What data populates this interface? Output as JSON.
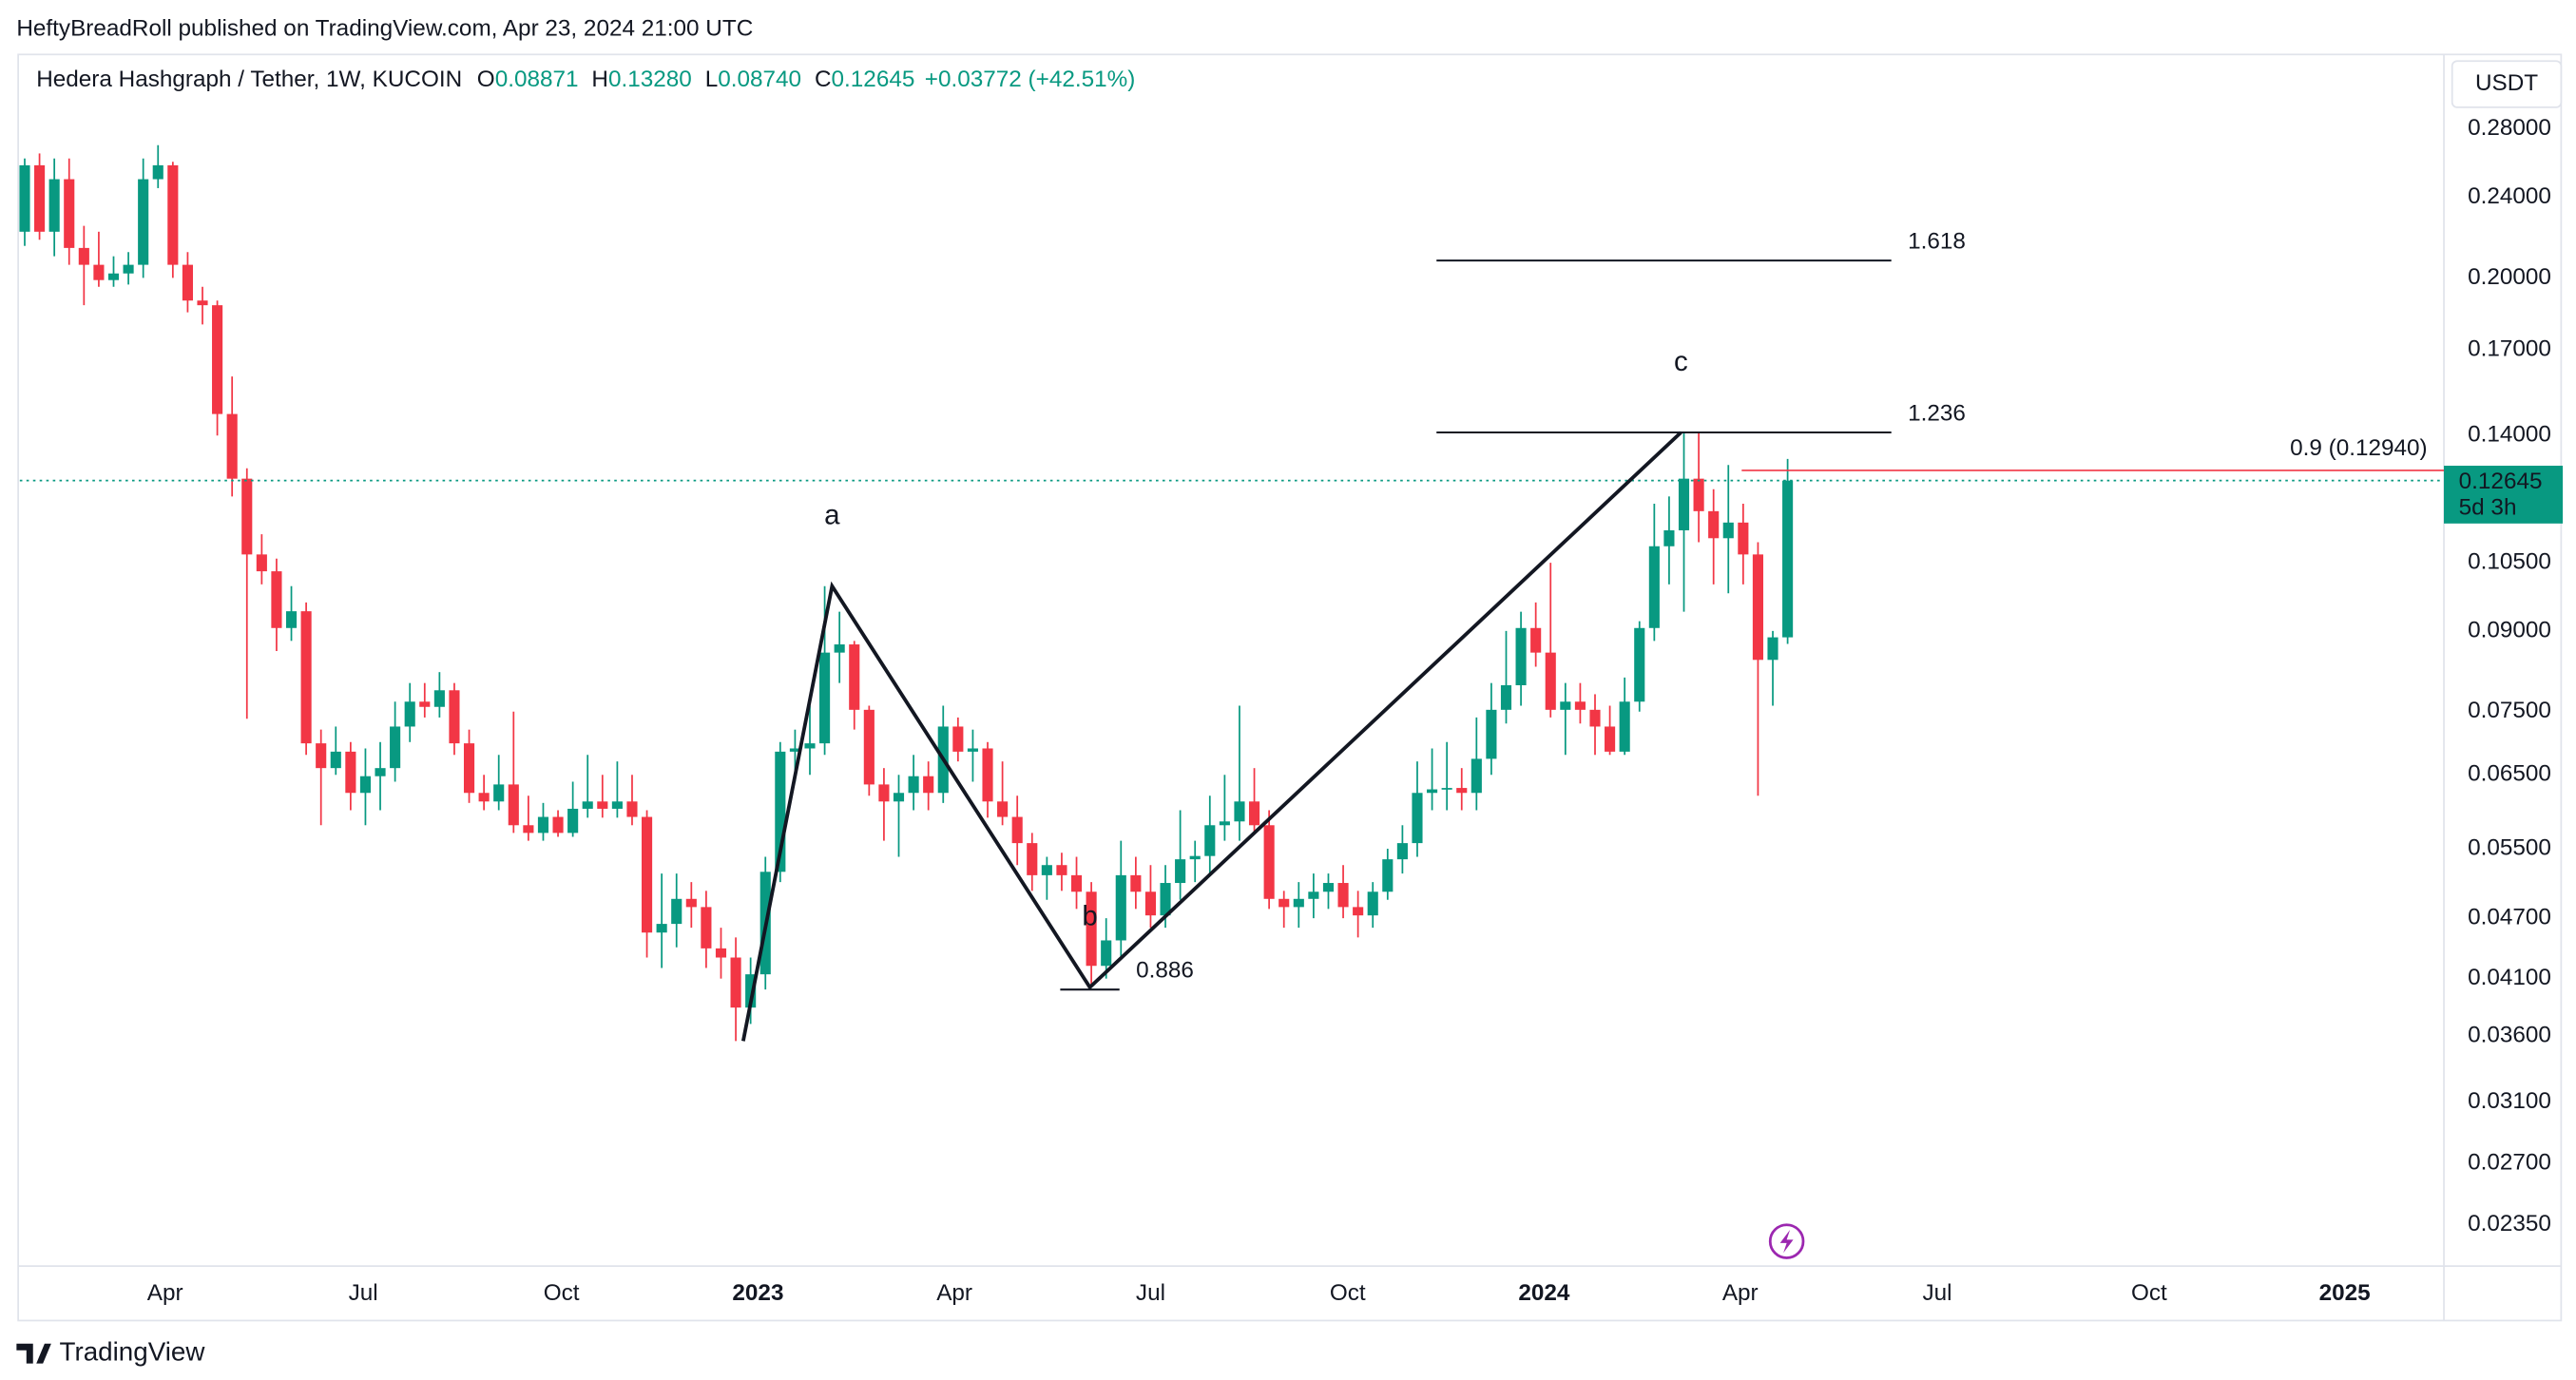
{
  "header": {
    "published": "HeftyBreadRoll published on TradingView.com, Apr 23, 2024 21:00 UTC",
    "brand": "TradingView"
  },
  "chart_data": {
    "type": "candlestick",
    "title": "Hedera Hashgraph / Tether, 1W, KUCOIN",
    "quote": [
      {
        "label": "O",
        "value": "0.08871"
      },
      {
        "label": "H",
        "value": "0.13280"
      },
      {
        "label": "L",
        "value": "0.08740"
      },
      {
        "label": "C",
        "value": "0.12645"
      }
    ],
    "change": "+0.03772 (+42.51%)",
    "currency": "USDT",
    "log_scale": true,
    "grid": false,
    "colors": {
      "up": "#089981",
      "down": "#f23645"
    },
    "xlim": [
      -0.33,
      163.3
    ],
    "xticks": [
      {
        "value": 9.48,
        "label": "Apr"
      },
      {
        "value": 22.85,
        "label": "Jul"
      },
      {
        "value": 36.23,
        "label": "Oct"
      },
      {
        "value": 49.5,
        "label": "2023"
      },
      {
        "value": 62.76,
        "label": "Apr"
      },
      {
        "value": 76.0,
        "label": "Jul"
      },
      {
        "value": 89.3,
        "label": "Oct"
      },
      {
        "value": 102.56,
        "label": "2024"
      },
      {
        "value": 115.8,
        "label": "Apr"
      },
      {
        "value": 129.1,
        "label": "Jul"
      },
      {
        "value": 143.4,
        "label": "Oct"
      },
      {
        "value": 156.6,
        "label": "2025"
      }
    ],
    "ylim": [
      0.0214,
      0.329
    ],
    "yticks": [
      {
        "value": 0.28,
        "label": "0.28000"
      },
      {
        "value": 0.24,
        "label": "0.24000"
      },
      {
        "value": 0.2,
        "label": "0.20000"
      },
      {
        "value": 0.17,
        "label": "0.17000"
      },
      {
        "value": 0.14,
        "label": "0.14000"
      },
      {
        "value": 0.105,
        "label": "0.10500"
      },
      {
        "value": 0.09,
        "label": "0.09000"
      },
      {
        "value": 0.075,
        "label": "0.07500"
      },
      {
        "value": 0.065,
        "label": "0.06500"
      },
      {
        "value": 0.055,
        "label": "0.05500"
      },
      {
        "value": 0.047,
        "label": "0.04700"
      },
      {
        "value": 0.041,
        "label": "0.04100"
      },
      {
        "value": 0.036,
        "label": "0.03600"
      },
      {
        "value": 0.031,
        "label": "0.03100"
      },
      {
        "value": 0.027,
        "label": "0.02700"
      },
      {
        "value": 0.0235,
        "label": "0.02350"
      }
    ],
    "ohlc": [
      [
        0.222,
        0.262,
        0.215,
        0.258
      ],
      [
        0.258,
        0.265,
        0.218,
        0.222
      ],
      [
        0.222,
        0.262,
        0.21,
        0.25
      ],
      [
        0.25,
        0.262,
        0.206,
        0.214
      ],
      [
        0.214,
        0.225,
        0.188,
        0.206
      ],
      [
        0.206,
        0.222,
        0.196,
        0.199
      ],
      [
        0.199,
        0.21,
        0.196,
        0.202
      ],
      [
        0.202,
        0.212,
        0.197,
        0.206
      ],
      [
        0.206,
        0.262,
        0.2,
        0.25
      ],
      [
        0.25,
        0.27,
        0.245,
        0.258
      ],
      [
        0.258,
        0.26,
        0.2,
        0.206
      ],
      [
        0.206,
        0.212,
        0.185,
        0.19
      ],
      [
        0.19,
        0.196,
        0.18,
        0.188
      ],
      [
        0.188,
        0.19,
        0.14,
        0.147
      ],
      [
        0.147,
        0.16,
        0.122,
        0.127
      ],
      [
        0.127,
        0.13,
        0.0738,
        0.107
      ],
      [
        0.107,
        0.112,
        0.1,
        0.103
      ],
      [
        0.103,
        0.106,
        0.086,
        0.0906
      ],
      [
        0.0906,
        0.0996,
        0.088,
        0.0941
      ],
      [
        0.0941,
        0.096,
        0.068,
        0.0698
      ],
      [
        0.0698,
        0.072,
        0.058,
        0.066
      ],
      [
        0.066,
        0.0725,
        0.065,
        0.0685
      ],
      [
        0.0685,
        0.07,
        0.06,
        0.0624
      ],
      [
        0.0624,
        0.069,
        0.058,
        0.0648
      ],
      [
        0.0648,
        0.07,
        0.06,
        0.066
      ],
      [
        0.066,
        0.0767,
        0.064,
        0.0725
      ],
      [
        0.0725,
        0.08,
        0.07,
        0.0767
      ],
      [
        0.0767,
        0.08,
        0.074,
        0.0758
      ],
      [
        0.0758,
        0.082,
        0.074,
        0.0787
      ],
      [
        0.0787,
        0.08,
        0.068,
        0.0698
      ],
      [
        0.0698,
        0.072,
        0.061,
        0.0624
      ],
      [
        0.0624,
        0.065,
        0.06,
        0.0612
      ],
      [
        0.0612,
        0.068,
        0.06,
        0.0636
      ],
      [
        0.0636,
        0.075,
        0.057,
        0.058
      ],
      [
        0.058,
        0.062,
        0.056,
        0.057
      ],
      [
        0.057,
        0.061,
        0.056,
        0.0591
      ],
      [
        0.0591,
        0.06,
        0.0565,
        0.057
      ],
      [
        0.057,
        0.064,
        0.0565,
        0.0602
      ],
      [
        0.0602,
        0.068,
        0.059,
        0.0612
      ],
      [
        0.0612,
        0.065,
        0.059,
        0.0602
      ],
      [
        0.0602,
        0.067,
        0.059,
        0.0612
      ],
      [
        0.0612,
        0.065,
        0.058,
        0.0591
      ],
      [
        0.0591,
        0.06,
        0.043,
        0.0455
      ],
      [
        0.0455,
        0.052,
        0.042,
        0.0464
      ],
      [
        0.0464,
        0.052,
        0.044,
        0.0491
      ],
      [
        0.0491,
        0.051,
        0.046,
        0.0482
      ],
      [
        0.0482,
        0.05,
        0.042,
        0.0439
      ],
      [
        0.0439,
        0.046,
        0.041,
        0.043
      ],
      [
        0.043,
        0.045,
        0.0356,
        0.0384
      ],
      [
        0.0384,
        0.043,
        0.037,
        0.0414
      ],
      [
        0.0414,
        0.054,
        0.04,
        0.0522
      ],
      [
        0.0522,
        0.07,
        0.051,
        0.0685
      ],
      [
        0.0685,
        0.072,
        0.064,
        0.069
      ],
      [
        0.069,
        0.076,
        0.065,
        0.0698
      ],
      [
        0.0698,
        0.0996,
        0.068,
        0.0857
      ],
      [
        0.0857,
        0.094,
        0.08,
        0.0873
      ],
      [
        0.0873,
        0.088,
        0.072,
        0.0753
      ],
      [
        0.0753,
        0.076,
        0.062,
        0.0636
      ],
      [
        0.0636,
        0.066,
        0.056,
        0.0612
      ],
      [
        0.0612,
        0.065,
        0.054,
        0.0624
      ],
      [
        0.0624,
        0.068,
        0.06,
        0.0648
      ],
      [
        0.0648,
        0.067,
        0.06,
        0.0624
      ],
      [
        0.0624,
        0.076,
        0.061,
        0.0725
      ],
      [
        0.0725,
        0.074,
        0.067,
        0.0685
      ],
      [
        0.0685,
        0.072,
        0.064,
        0.069
      ],
      [
        0.069,
        0.07,
        0.059,
        0.0612
      ],
      [
        0.0612,
        0.067,
        0.058,
        0.0591
      ],
      [
        0.0591,
        0.062,
        0.053,
        0.0557
      ],
      [
        0.0557,
        0.057,
        0.05,
        0.0518
      ],
      [
        0.0518,
        0.054,
        0.049,
        0.053
      ],
      [
        0.053,
        0.0545,
        0.05,
        0.0518
      ],
      [
        0.0518,
        0.054,
        0.048,
        0.0499
      ],
      [
        0.0499,
        0.051,
        0.0402,
        0.0422
      ],
      [
        0.0422,
        0.047,
        0.041,
        0.0447
      ],
      [
        0.0447,
        0.056,
        0.043,
        0.0518
      ],
      [
        0.0518,
        0.054,
        0.048,
        0.0499
      ],
      [
        0.0499,
        0.053,
        0.046,
        0.0473
      ],
      [
        0.0473,
        0.053,
        0.046,
        0.0509
      ],
      [
        0.0509,
        0.06,
        0.049,
        0.0537
      ],
      [
        0.0537,
        0.056,
        0.051,
        0.0541
      ],
      [
        0.0541,
        0.062,
        0.052,
        0.058
      ],
      [
        0.058,
        0.065,
        0.056,
        0.0585
      ],
      [
        0.0585,
        0.076,
        0.056,
        0.0612
      ],
      [
        0.0612,
        0.066,
        0.057,
        0.058
      ],
      [
        0.058,
        0.06,
        0.048,
        0.0491
      ],
      [
        0.0491,
        0.05,
        0.046,
        0.0482
      ],
      [
        0.0482,
        0.051,
        0.046,
        0.0491
      ],
      [
        0.0491,
        0.052,
        0.047,
        0.0499
      ],
      [
        0.0499,
        0.052,
        0.048,
        0.0509
      ],
      [
        0.0509,
        0.053,
        0.047,
        0.0482
      ],
      [
        0.0482,
        0.05,
        0.045,
        0.0473
      ],
      [
        0.0473,
        0.051,
        0.046,
        0.0499
      ],
      [
        0.0499,
        0.055,
        0.049,
        0.0537
      ],
      [
        0.0537,
        0.058,
        0.052,
        0.0557
      ],
      [
        0.0557,
        0.067,
        0.054,
        0.0624
      ],
      [
        0.0624,
        0.069,
        0.06,
        0.0629
      ],
      [
        0.0629,
        0.07,
        0.06,
        0.0631
      ],
      [
        0.0631,
        0.066,
        0.06,
        0.0624
      ],
      [
        0.0624,
        0.074,
        0.06,
        0.0674
      ],
      [
        0.0674,
        0.08,
        0.065,
        0.0753
      ],
      [
        0.0753,
        0.09,
        0.073,
        0.0796
      ],
      [
        0.0796,
        0.094,
        0.076,
        0.0906
      ],
      [
        0.0906,
        0.096,
        0.083,
        0.0857
      ],
      [
        0.0857,
        0.105,
        0.074,
        0.0753
      ],
      [
        0.0753,
        0.08,
        0.068,
        0.0767
      ],
      [
        0.0767,
        0.08,
        0.073,
        0.0753
      ],
      [
        0.0753,
        0.078,
        0.068,
        0.0725
      ],
      [
        0.0725,
        0.076,
        0.068,
        0.0685
      ],
      [
        0.0685,
        0.081,
        0.068,
        0.0767
      ],
      [
        0.0767,
        0.092,
        0.075,
        0.0906
      ],
      [
        0.0906,
        0.12,
        0.088,
        0.109
      ],
      [
        0.109,
        0.122,
        0.1,
        0.113
      ],
      [
        0.113,
        0.141,
        0.094,
        0.127
      ],
      [
        0.127,
        0.141,
        0.11,
        0.118
      ],
      [
        0.118,
        0.124,
        0.1,
        0.111
      ],
      [
        0.111,
        0.131,
        0.098,
        0.115
      ],
      [
        0.115,
        0.12,
        0.1,
        0.107
      ],
      [
        0.107,
        0.11,
        0.062,
        0.0843
      ],
      [
        0.0843,
        0.09,
        0.076,
        0.08871
      ],
      [
        0.08871,
        0.1328,
        0.0874,
        0.12645
      ]
    ],
    "price_line": {
      "value": 0.12645,
      "label": "0.12645",
      "countdown": "5d 3h"
    },
    "target_line": {
      "value": 0.1294,
      "label": "0.9 (0.12940)",
      "x": 115.9
    },
    "pattern": [
      {
        "x": 48.5,
        "y": 0.0356
      },
      {
        "x": 54.5,
        "y": 0.0996,
        "label": "a"
      },
      {
        "x": 71.9,
        "y": 0.0402,
        "label": "b"
      },
      {
        "x": 111.8,
        "y": 0.141,
        "label": "c"
      }
    ],
    "fib_levels": [
      {
        "label": "1.618",
        "value": 0.208,
        "x": [
          95.3,
          126
        ]
      },
      {
        "label": "1.236",
        "value": 0.141,
        "x": [
          95.3,
          126
        ]
      },
      {
        "label": "0.886",
        "value": 0.04,
        "x": [
          69.9,
          73.9
        ]
      }
    ]
  }
}
